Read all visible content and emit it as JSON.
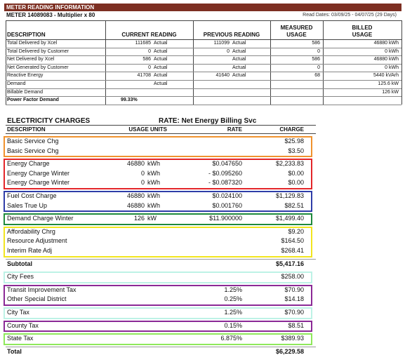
{
  "meter": {
    "banner": "METER READING INFORMATION",
    "meter_line": "METER 14089083 - Multiplier x 80",
    "read_dates": "Read Dates: 03/09/25 - 04/07/25 (29 Days)",
    "columns": [
      [
        "DESCRIPTION"
      ],
      [
        "CURRENT READING"
      ],
      [
        "PREVIOUS READING"
      ],
      [
        "MEASURED",
        "USAGE"
      ],
      [
        "BILLED",
        "USAGE"
      ]
    ],
    "rows": [
      {
        "description": "Total Delivered by Xcel",
        "current": {
          "reading": "111685",
          "status": "Actual"
        },
        "previous": {
          "reading": "111099",
          "status": "Actual"
        },
        "measured": "586",
        "billed": "46880 kWh"
      },
      {
        "description": "Total Delivered by Customer",
        "current": {
          "reading": "0",
          "status": "Actual"
        },
        "previous": {
          "reading": "0",
          "status": "Actual"
        },
        "measured": "0",
        "billed": "0 kWh"
      },
      {
        "description": "Net Delivered by Xcel",
        "current": {
          "reading": "586",
          "status": "Actual"
        },
        "previous": {
          "status": "Actual"
        },
        "measured": "586",
        "billed": "46880 kWh"
      },
      {
        "description": "Net Generated by Customer",
        "current": {
          "reading": "0",
          "status": "Actual"
        },
        "previous": {
          "status": "Actual"
        },
        "measured": "0",
        "billed": "0 kWh"
      },
      {
        "description": "Reactive Energy",
        "current": {
          "reading": "41708",
          "status": "Actual"
        },
        "previous": {
          "reading": "41640",
          "status": "Actual"
        },
        "measured": "68",
        "billed": "5440 kVArh"
      },
      {
        "description": "Demand",
        "current": {
          "status": "Actual"
        },
        "billed": "125.6 kW"
      },
      {
        "description": "Billable Demand",
        "billed": "126 kW"
      },
      {
        "description": "Power Factor Demand",
        "current": {
          "reading": "99.33%"
        },
        "bold": true
      }
    ]
  },
  "charges": {
    "title": "ELECTRICITY CHARGES",
    "rate": "RATE: Net Energy Billing Svc",
    "header": {
      "description": "DESCRIPTION",
      "usage": "USAGE UNITS",
      "rate": "RATE",
      "charge": "CHARGE"
    },
    "sections": [
      {
        "color": "#f0922e",
        "rows": [
          {
            "description": "Basic Service Chg",
            "charge": "$25.98"
          },
          {
            "description": "Basic Service Chg",
            "charge": "$3.50"
          }
        ]
      },
      {
        "color": "#e3262a",
        "rows": [
          {
            "description": "Energy Charge",
            "usage": "46880",
            "units": "kWh",
            "rate": "$0.047650",
            "charge": "$2,233.83"
          },
          {
            "description": "Energy Charge   Winter",
            "usage": "0",
            "units": "kWh",
            "rate": "- $0.095260",
            "charge": "$0.00"
          },
          {
            "description": "Energy Charge   Winter",
            "usage": "0",
            "units": "kWh",
            "rate": "- $0.087320",
            "charge": "$0.00"
          }
        ]
      },
      {
        "color": "#2f3da8",
        "rows": [
          {
            "description": "Fuel Cost Charge",
            "usage": "46880",
            "units": "kWh",
            "rate": "$0.024100",
            "charge": "$1,129.83"
          },
          {
            "description": "Sales True Up",
            "usage": "46880",
            "units": "kWh",
            "rate": "$0.001760",
            "charge": "$82.51"
          }
        ]
      },
      {
        "color": "#1f8a3c",
        "rows": [
          {
            "description": "Demand Charge   Winter",
            "usage": "126",
            "units": "kW",
            "rate": "$11.900000",
            "charge": "$1,499.40"
          }
        ]
      },
      {
        "color": "#f2e51f",
        "rows": [
          {
            "description": "Affordability Chrg",
            "charge": "$9.20"
          },
          {
            "description": "Resource Adjustment",
            "charge": "$164.50"
          },
          {
            "description": "Interim Rate Adj",
            "charge": "$268.41"
          }
        ]
      },
      {
        "bold": true,
        "rows": [
          {
            "description": "Subtotal",
            "charge": "$5,417.16"
          }
        ]
      },
      {
        "color": "#bdf2e6",
        "rows": [
          {
            "description": "City Fees",
            "charge": "$258.00"
          }
        ]
      },
      {
        "color": "#8b2a96",
        "rows": [
          {
            "description": "Transit Improvement Tax",
            "rate": "1.25%",
            "charge": "$70.90"
          },
          {
            "description": "Other Special District",
            "rate": "0.25%",
            "charge": "$14.18"
          }
        ]
      },
      {
        "color": "#bdf2e6",
        "rows": [
          {
            "description": "City Tax",
            "rate": "1.25%",
            "charge": "$70.90"
          }
        ]
      },
      {
        "color": "#8b2a96",
        "rows": [
          {
            "description": "County Tax",
            "rate": "0.15%",
            "charge": "$8.51"
          }
        ]
      },
      {
        "color": "#8fe85c",
        "rows": [
          {
            "description": "State Tax",
            "rate": "6.875%",
            "charge": "$389.93"
          }
        ]
      },
      {
        "bold": true,
        "rows": [
          {
            "description": "Total",
            "charge": "$6,229.58"
          }
        ]
      }
    ]
  }
}
